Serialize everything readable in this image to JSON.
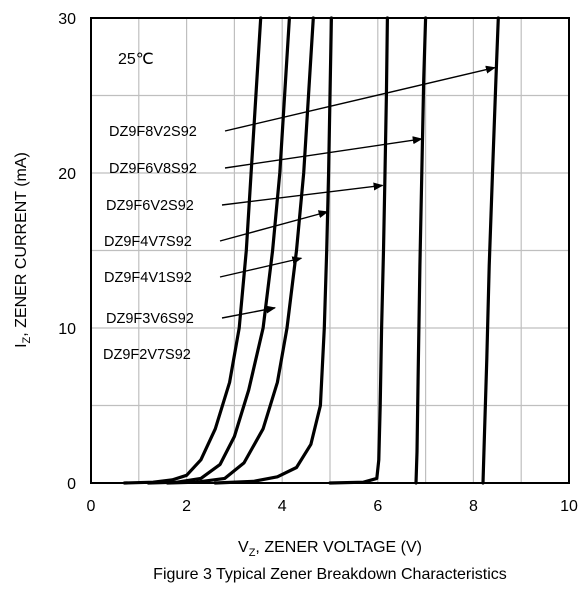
{
  "chart_data": {
    "type": "line",
    "title": "",
    "caption": "Figure 3 Typical Zener Breakdown Characteristics",
    "xlabel_main": "V",
    "xlabel_sub": "Z",
    "xlabel_rest": ", ZENER VOLTAGE (V)",
    "ylabel_main": "I",
    "ylabel_sub": "Z",
    "ylabel_rest": ", ZENER CURRENT (mA)",
    "xlim": [
      0,
      10
    ],
    "ylim": [
      0,
      30
    ],
    "xticks": [
      0,
      2,
      4,
      6,
      8,
      10
    ],
    "yticks": [
      0,
      10,
      20,
      30
    ],
    "xgrid": [
      0,
      1,
      2,
      3,
      4,
      5,
      6,
      7,
      8,
      9,
      10
    ],
    "ygrid": [
      0,
      5,
      10,
      15,
      20,
      25,
      30
    ],
    "temperature_label": "25℃",
    "series": [
      {
        "name": "DZ9F2V7S92",
        "points": [
          [
            0.7,
            0
          ],
          [
            1.3,
            0.05
          ],
          [
            1.7,
            0.2
          ],
          [
            2.0,
            0.5
          ],
          [
            2.3,
            1.5
          ],
          [
            2.6,
            3.5
          ],
          [
            2.9,
            6.5
          ],
          [
            3.1,
            10
          ],
          [
            3.25,
            15
          ],
          [
            3.35,
            20
          ],
          [
            3.45,
            25
          ],
          [
            3.55,
            30
          ]
        ],
        "arrow_to": null
      },
      {
        "name": "DZ9F3V6S92",
        "points": [
          [
            1.2,
            0
          ],
          [
            1.8,
            0.05
          ],
          [
            2.3,
            0.3
          ],
          [
            2.7,
            1.2
          ],
          [
            3.0,
            3
          ],
          [
            3.3,
            6
          ],
          [
            3.6,
            10
          ],
          [
            3.8,
            15
          ],
          [
            3.95,
            20
          ],
          [
            4.05,
            25
          ],
          [
            4.15,
            30
          ]
        ],
        "arrow_to": [
          3.85,
          11.3
        ]
      },
      {
        "name": "DZ9F4V1S92",
        "points": [
          [
            1.6,
            0
          ],
          [
            2.2,
            0.05
          ],
          [
            2.8,
            0.3
          ],
          [
            3.2,
            1.3
          ],
          [
            3.6,
            3.5
          ],
          [
            3.9,
            6.5
          ],
          [
            4.1,
            10
          ],
          [
            4.3,
            15
          ],
          [
            4.45,
            20
          ],
          [
            4.55,
            25
          ],
          [
            4.65,
            30
          ]
        ],
        "arrow_to": [
          4.4,
          14.5
        ]
      },
      {
        "name": "DZ9F4V7S92",
        "points": [
          [
            2.6,
            0
          ],
          [
            3.4,
            0.1
          ],
          [
            3.9,
            0.4
          ],
          [
            4.3,
            1
          ],
          [
            4.6,
            2.5
          ],
          [
            4.8,
            5
          ],
          [
            4.88,
            10
          ],
          [
            4.93,
            15
          ],
          [
            4.97,
            20
          ],
          [
            5.0,
            25
          ],
          [
            5.03,
            30
          ]
        ],
        "arrow_to": [
          4.95,
          17.5
        ]
      },
      {
        "name": "DZ9F6V2S92",
        "points": [
          [
            5.0,
            0
          ],
          [
            5.7,
            0.05
          ],
          [
            5.98,
            0.3
          ],
          [
            6.02,
            1.5
          ],
          [
            6.05,
            5
          ],
          [
            6.08,
            10
          ],
          [
            6.12,
            15
          ],
          [
            6.15,
            20
          ],
          [
            6.18,
            25
          ],
          [
            6.2,
            30
          ]
        ],
        "arrow_to": [
          6.1,
          19.2
        ]
      },
      {
        "name": "DZ9F6V8S92",
        "points": [
          [
            6.8,
            0
          ],
          [
            6.82,
            2
          ],
          [
            6.85,
            8
          ],
          [
            6.88,
            14
          ],
          [
            6.92,
            20
          ],
          [
            6.96,
            26
          ],
          [
            7.0,
            30
          ]
        ],
        "arrow_to": [
          6.92,
          22.2
        ]
      },
      {
        "name": "DZ9F8V2S92",
        "points": [
          [
            8.2,
            0
          ],
          [
            8.23,
            3
          ],
          [
            8.28,
            8
          ],
          [
            8.33,
            14
          ],
          [
            8.4,
            20
          ],
          [
            8.47,
            26
          ],
          [
            8.52,
            30
          ]
        ],
        "arrow_to": [
          8.45,
          26.8
        ]
      }
    ],
    "labels": [
      {
        "text": "DZ9F8V2S92",
        "series": "DZ9F8V2S92"
      },
      {
        "text": "DZ9F6V8S92",
        "series": "DZ9F6V8S92"
      },
      {
        "text": "DZ9F6V2S92",
        "series": "DZ9F6V2S92"
      },
      {
        "text": "DZ9F4V7S92",
        "series": "DZ9F4V7S92"
      },
      {
        "text": "DZ9F4V1S92",
        "series": "DZ9F4V1S92"
      },
      {
        "text": "DZ9F3V6S92",
        "series": "DZ9F3V6S92"
      },
      {
        "text": "DZ9F2V7S92",
        "series": "DZ9F2V7S92"
      }
    ]
  }
}
